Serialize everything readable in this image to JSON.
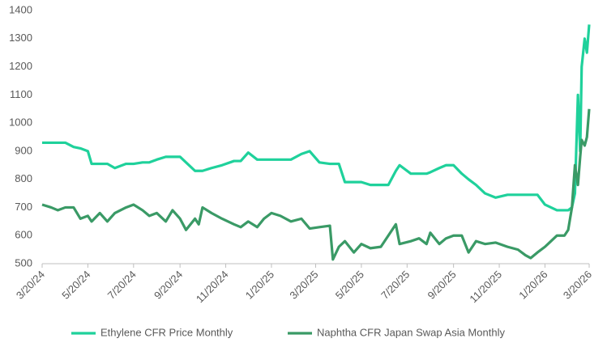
{
  "chart_data": {
    "type": "line",
    "x": [
      "3/20/24",
      "4/1/24",
      "4/10/24",
      "4/20/24",
      "5/1/24",
      "5/10/24",
      "5/20/24",
      "5/25/24",
      "6/5/24",
      "6/15/24",
      "6/25/24",
      "7/10/24",
      "7/20/24",
      "8/1/24",
      "8/10/24",
      "8/20/24",
      "9/1/24",
      "9/10/24",
      "9/20/24",
      "9/28/24",
      "10/10/24",
      "10/15/24",
      "10/20/24",
      "11/1/24",
      "11/15/24",
      "12/1/24",
      "12/10/24",
      "12/20/24",
      "1/1/25",
      "1/10/25",
      "1/20/25",
      "2/1/25",
      "2/15/25",
      "3/1/25",
      "3/12/25",
      "3/25/25",
      "4/8/25",
      "4/12/25",
      "4/20/25",
      "4/28/25",
      "5/10/25",
      "5/20/25",
      "6/1/25",
      "6/15/25",
      "6/25/25",
      "7/5/25",
      "7/10/25",
      "7/25/25",
      "8/5/25",
      "8/15/25",
      "8/20/25",
      "9/1/25",
      "9/10/25",
      "9/20/25",
      "10/1/25",
      "10/10/25",
      "10/20/25",
      "11/1/25",
      "11/15/25",
      "12/1/25",
      "12/15/25",
      "12/25/25",
      "1/1/26",
      "1/10/26",
      "1/20/26",
      "1/28/26",
      "2/5/26",
      "2/15/26",
      "2/20/26",
      "2/25/26",
      "3/1/26",
      "3/5/26",
      "3/8/26",
      "3/10/26",
      "3/14/26",
      "3/17/26",
      "3/20/26"
    ],
    "series": [
      {
        "name": "Ethylene CFR Price Monthly",
        "color": "#1fd19b",
        "values": [
          930,
          930,
          930,
          930,
          915,
          910,
          900,
          855,
          855,
          855,
          840,
          855,
          855,
          860,
          860,
          870,
          880,
          880,
          880,
          860,
          830,
          830,
          830,
          840,
          850,
          865,
          865,
          895,
          870,
          870,
          870,
          870,
          870,
          890,
          900,
          860,
          855,
          855,
          855,
          790,
          790,
          790,
          780,
          780,
          780,
          830,
          850,
          820,
          820,
          820,
          825,
          840,
          850,
          850,
          820,
          800,
          780,
          750,
          735,
          745,
          745,
          745,
          745,
          745,
          710,
          700,
          690,
          690,
          690,
          700,
          750,
          1100,
          900,
          1200,
          1300,
          1250,
          1350
        ]
      },
      {
        "name": "Naphtha CFR Japan Swap Asia Monthly",
        "color": "#3a9a66",
        "values": [
          710,
          700,
          690,
          700,
          700,
          660,
          670,
          650,
          680,
          650,
          680,
          700,
          710,
          690,
          670,
          680,
          650,
          690,
          660,
          620,
          660,
          640,
          700,
          680,
          660,
          640,
          630,
          650,
          630,
          660,
          680,
          670,
          650,
          660,
          625,
          630,
          635,
          515,
          560,
          580,
          540,
          570,
          555,
          560,
          600,
          640,
          570,
          580,
          590,
          570,
          610,
          570,
          590,
          600,
          600,
          540,
          580,
          570,
          575,
          560,
          550,
          530,
          520,
          540,
          560,
          580,
          600,
          600,
          620,
          700,
          850,
          780,
          880,
          940,
          920,
          950,
          1050
        ]
      }
    ],
    "xlim": [
      "3/20/24",
      "3/20/26"
    ],
    "xticks": [
      "3/20/24",
      "5/20/24",
      "7/20/24",
      "9/20/24",
      "11/20/24",
      "1/20/25",
      "3/20/25",
      "5/20/25",
      "7/20/25",
      "9/20/25",
      "11/20/25",
      "1/20/26",
      "3/20/26"
    ],
    "ylim": [
      500,
      1400
    ],
    "yticks": [
      500,
      600,
      700,
      800,
      900,
      1000,
      1100,
      1200,
      1300,
      1400
    ],
    "grid": false,
    "legend": "bottom"
  }
}
